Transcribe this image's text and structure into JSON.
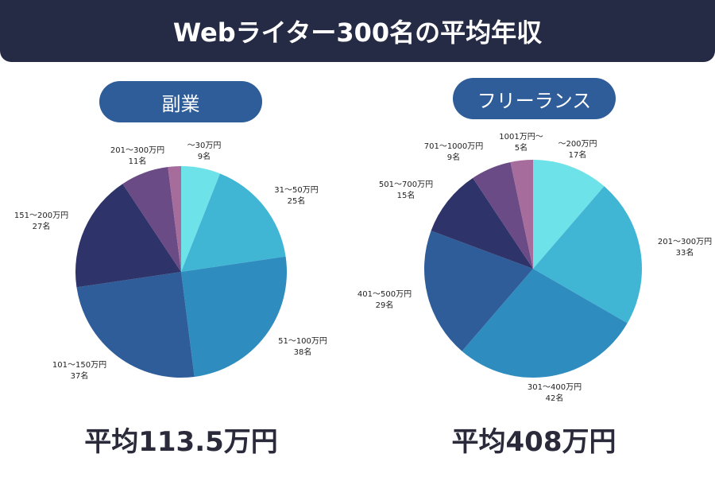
{
  "title": "Webライター300名の平均年収",
  "colors": [
    "#6de2e8",
    "#41b5d4",
    "#2e8cbf",
    "#2e5d99",
    "#2e3369",
    "#6a4b85",
    "#a66d9c"
  ],
  "chart_data": [
    {
      "type": "pie",
      "title": "副業",
      "average": "平均113.5万円",
      "slices": [
        {
          "label": "〜30万円",
          "count": "9名",
          "value": 9
        },
        {
          "label": "31〜50万円",
          "count": "25名",
          "value": 25
        },
        {
          "label": "51〜100万円",
          "count": "38名",
          "value": 38
        },
        {
          "label": "101〜150万円",
          "count": "37名",
          "value": 37
        },
        {
          "label": "151〜200万円",
          "count": "27名",
          "value": 27
        },
        {
          "label": "201〜300万円",
          "count": "11名",
          "value": 11
        },
        {
          "label": "",
          "count": "",
          "value": 3
        }
      ]
    },
    {
      "type": "pie",
      "title": "フリーランス",
      "average": "平均408万円",
      "slices": [
        {
          "label": "〜200万円",
          "count": "17名",
          "value": 17
        },
        {
          "label": "201〜300万円",
          "count": "33名",
          "value": 33
        },
        {
          "label": "301〜400万円",
          "count": "42名",
          "value": 42
        },
        {
          "label": "401〜500万円",
          "count": "29名",
          "value": 29
        },
        {
          "label": "501〜700万円",
          "count": "15名",
          "value": 15
        },
        {
          "label": "701〜1000万円",
          "count": "9名",
          "value": 9
        },
        {
          "label": "1001万円〜",
          "count": "5名",
          "value": 5
        }
      ]
    }
  ]
}
